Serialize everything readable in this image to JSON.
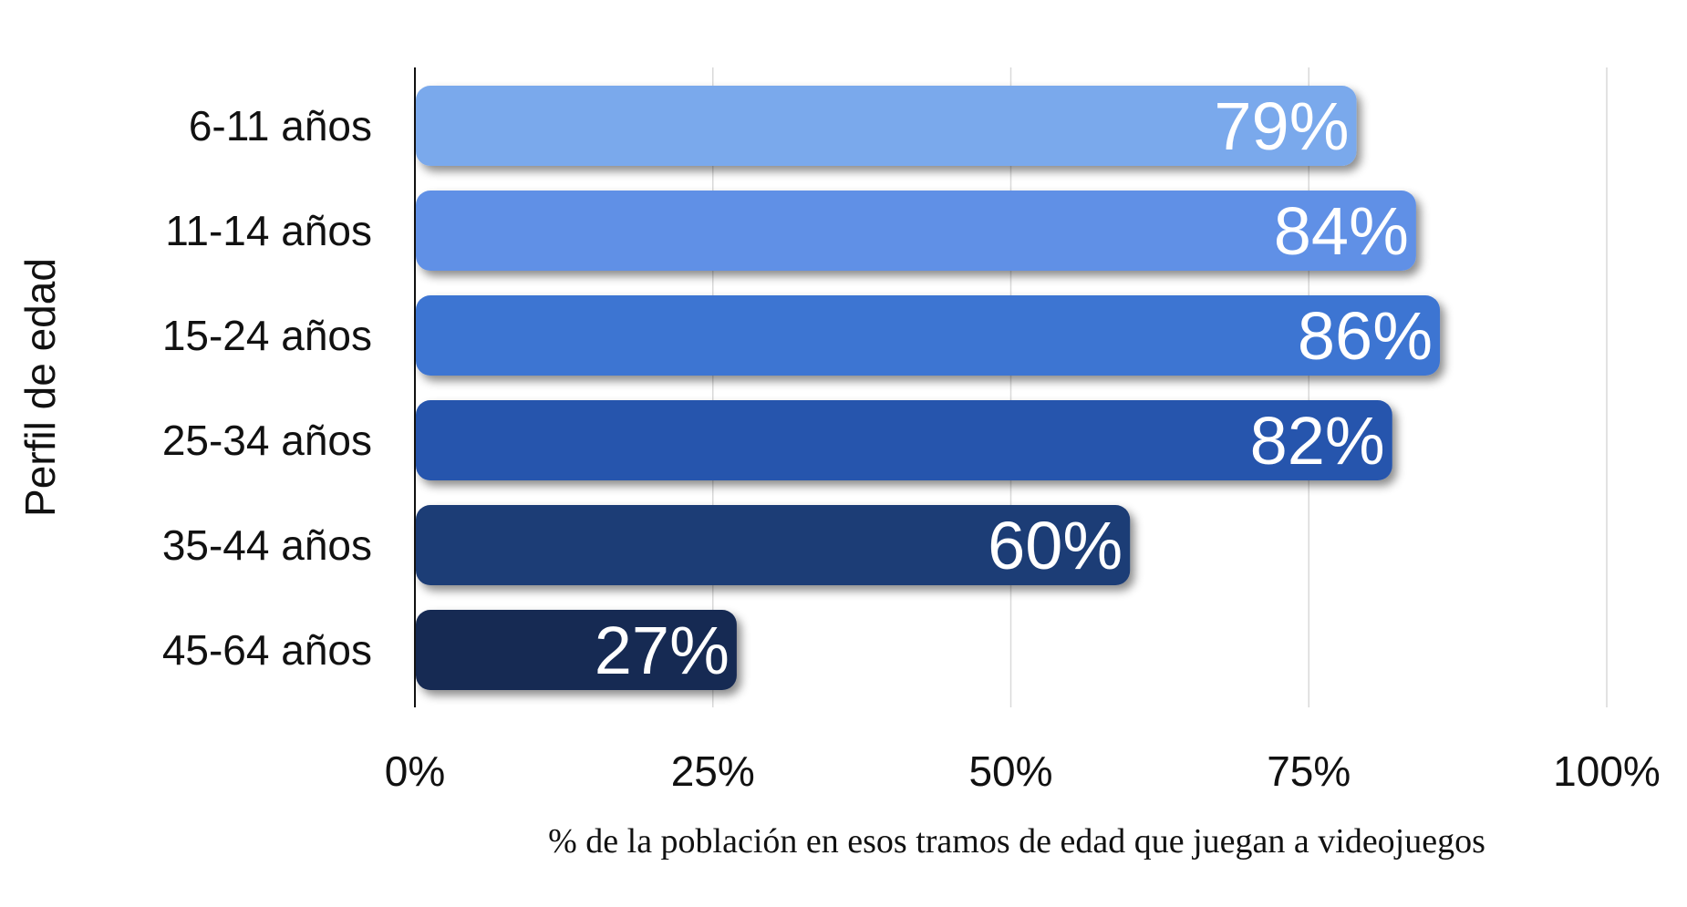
{
  "chart_data": {
    "type": "bar",
    "orientation": "horizontal",
    "categories": [
      "6-11 años",
      "11-14 años",
      "15-24 años",
      "25-34 años",
      "35-44 años",
      "45-64 años"
    ],
    "values": [
      79,
      84,
      86,
      82,
      60,
      27
    ],
    "value_labels": [
      "79%",
      "84%",
      "86%",
      "82%",
      "60%",
      "27%"
    ],
    "bar_colors": [
      "#7aa9ec",
      "#6190e6",
      "#3e74d2",
      "#2655ad",
      "#1e3c76",
      "#162a53"
    ],
    "xlabel": "% de la población en esos tramos de edad que juegan a videojuegos",
    "ylabel": "Perfil de edad",
    "xlim": [
      0,
      100
    ],
    "x_ticks": [
      0,
      25,
      50,
      75,
      100
    ],
    "x_tick_labels": [
      "0%",
      "25%",
      "50%",
      "75%",
      "100%"
    ],
    "grid": "vertical"
  }
}
